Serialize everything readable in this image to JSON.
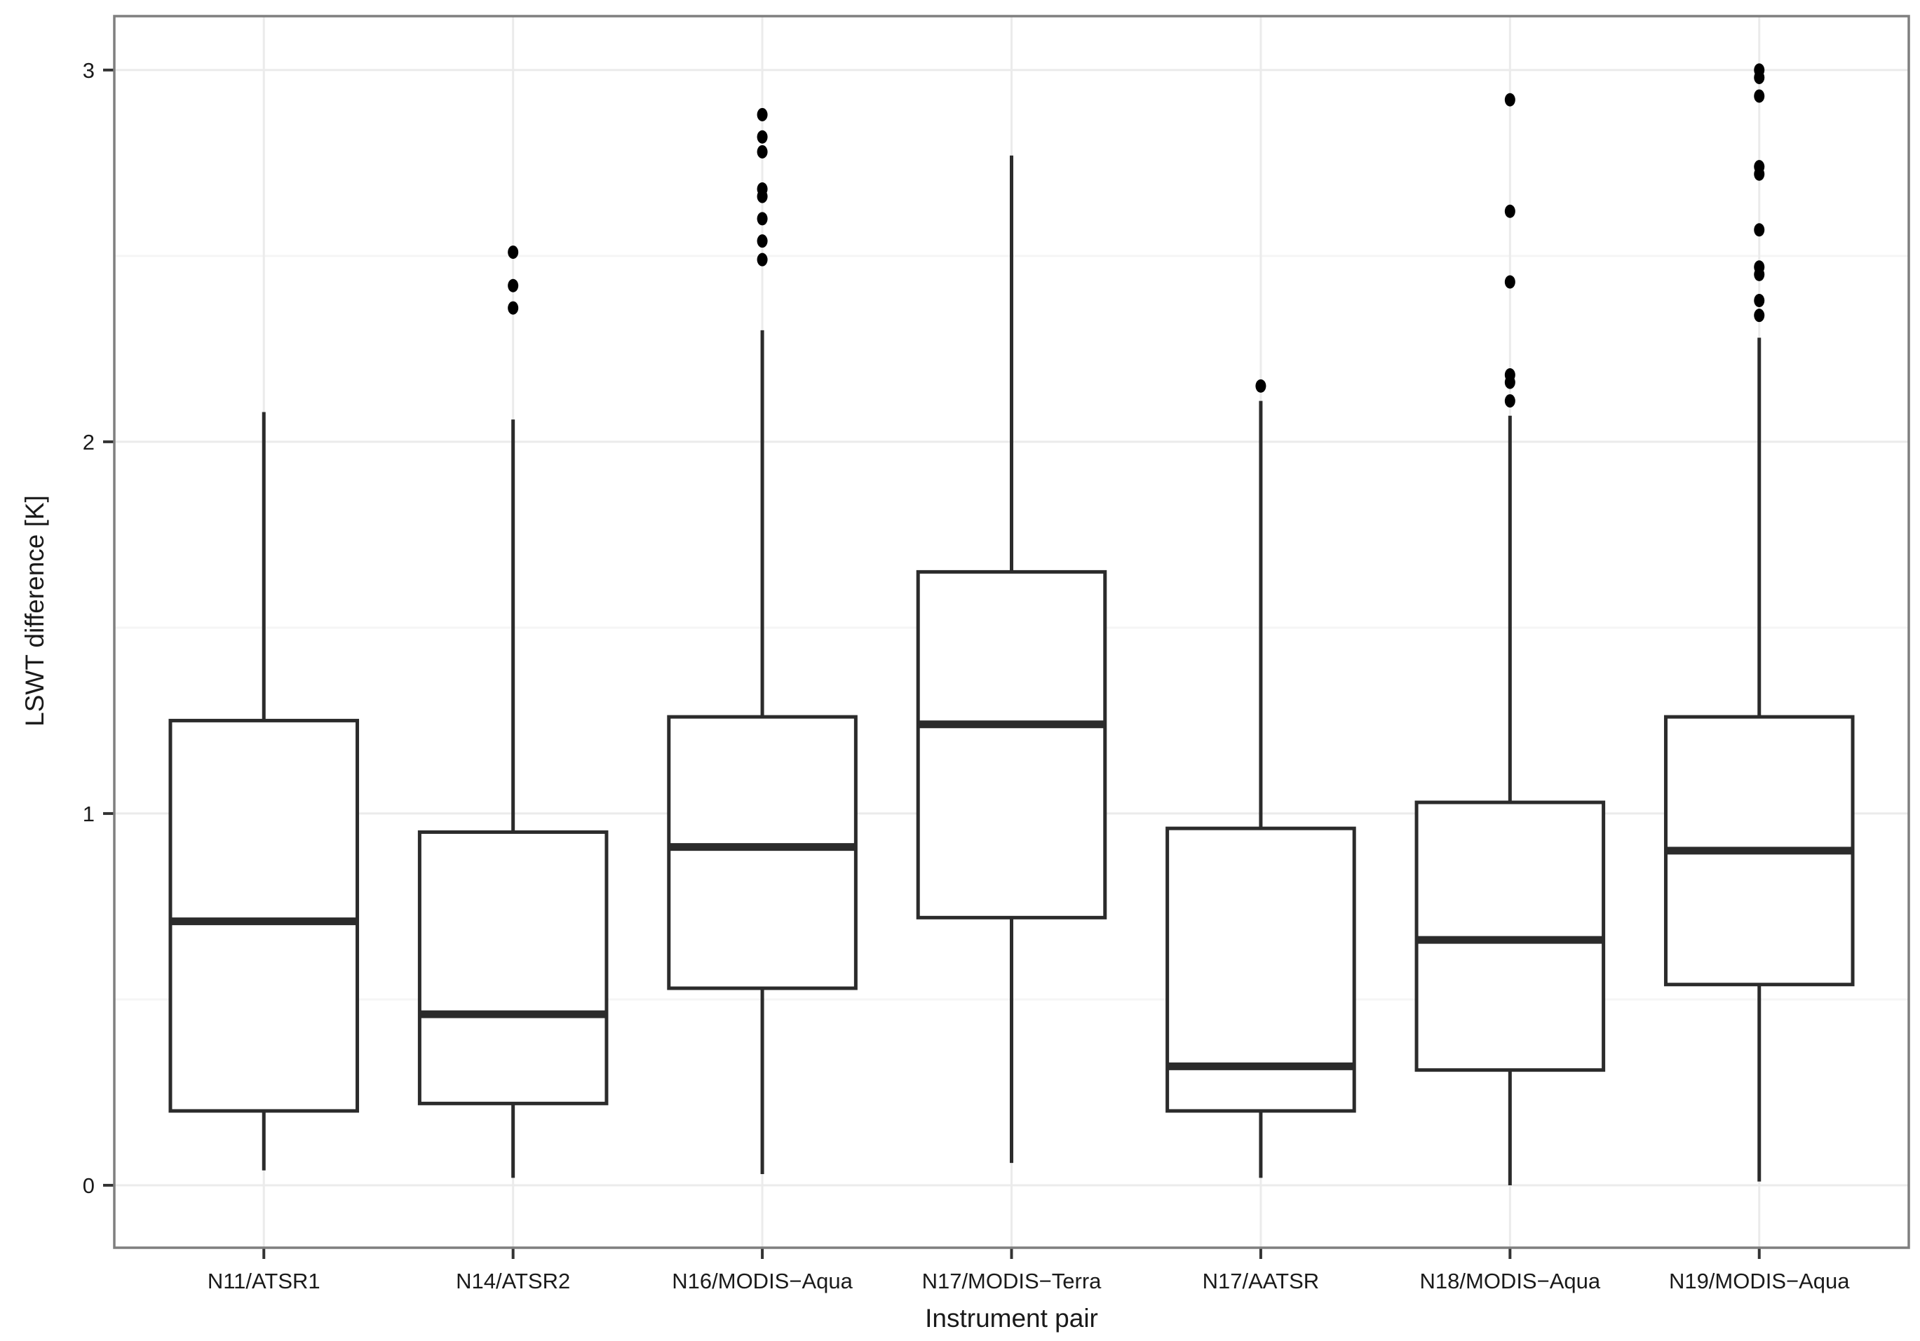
{
  "figure": {
    "background_color": "#ffffff",
    "panel_border_color": "#7f7f7f",
    "grid_major_color": "#ebebeb",
    "grid_minor_color": "#f5f5f5",
    "box_line_color": "#2b2b2b",
    "outlier_color": "#000000",
    "tick_color": "#333333",
    "text_color": "#1a1a1a"
  },
  "chart_data": {
    "type": "boxplot",
    "title": "",
    "xlabel": "Instrument pair",
    "ylabel": "LSWT difference [K]",
    "categories": [
      "N11/ATSR1",
      "N14/ATSR2",
      "N16/MODIS−Aqua",
      "N17/MODIS−Terra",
      "N17/AATSR",
      "N18/MODIS−Aqua",
      "N19/MODIS−Aqua"
    ],
    "yticks": [
      0,
      1,
      2,
      3
    ],
    "ylim": [
      -0.168,
      3.145
    ],
    "grid": "horizontal major at integers and minor at halves, vertical major at category centers",
    "legend_position": "none",
    "series": [
      {
        "name": "N11/ATSR1",
        "whisker_low": 0.04,
        "q1": 0.2,
        "median": 0.71,
        "q3": 1.25,
        "whisker_high": 2.08,
        "outliers": []
      },
      {
        "name": "N14/ATSR2",
        "whisker_low": 0.02,
        "q1": 0.22,
        "median": 0.46,
        "q3": 0.95,
        "whisker_high": 2.06,
        "outliers": [
          2.36,
          2.42,
          2.51
        ]
      },
      {
        "name": "N16/MODIS−Aqua",
        "whisker_low": 0.03,
        "q1": 0.53,
        "median": 0.91,
        "q3": 1.26,
        "whisker_high": 2.3,
        "outliers": [
          2.49,
          2.54,
          2.6,
          2.66,
          2.68,
          2.78,
          2.82,
          2.88
        ]
      },
      {
        "name": "N17/MODIS−Terra",
        "whisker_low": 0.06,
        "q1": 0.72,
        "median": 1.24,
        "q3": 1.65,
        "whisker_high": 2.77,
        "outliers": []
      },
      {
        "name": "N17/AATSR",
        "whisker_low": 0.02,
        "q1": 0.2,
        "median": 0.32,
        "q3": 0.96,
        "whisker_high": 2.11,
        "outliers": [
          2.15
        ]
      },
      {
        "name": "N18/MODIS−Aqua",
        "whisker_low": 0.0,
        "q1": 0.31,
        "median": 0.66,
        "q3": 1.03,
        "whisker_high": 2.07,
        "outliers": [
          2.11,
          2.16,
          2.18,
          2.43,
          2.62,
          2.92
        ]
      },
      {
        "name": "N19/MODIS−Aqua",
        "whisker_low": 0.01,
        "q1": 0.54,
        "median": 0.9,
        "q3": 1.26,
        "whisker_high": 2.28,
        "outliers": [
          2.34,
          2.38,
          2.45,
          2.47,
          2.57,
          2.72,
          2.74,
          2.93,
          2.98,
          3.0
        ]
      }
    ]
  }
}
